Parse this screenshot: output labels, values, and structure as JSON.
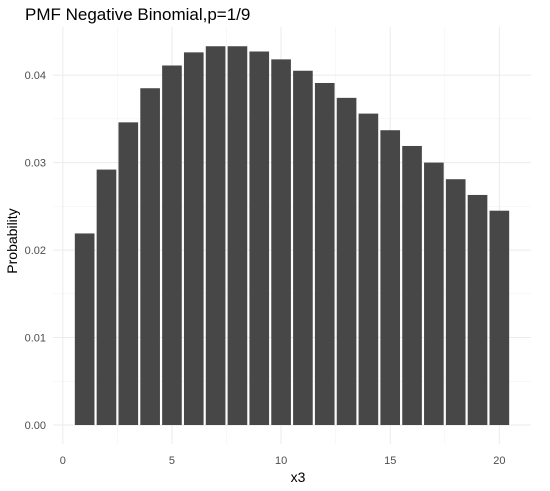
{
  "chart_data": {
    "type": "bar",
    "title": "PMF Negative Binomial,p=1/9",
    "xlabel": "x3",
    "ylabel": "Probability",
    "x": [
      1,
      2,
      3,
      4,
      5,
      6,
      7,
      8,
      9,
      10,
      11,
      12,
      13,
      14,
      15,
      16,
      17,
      18,
      19,
      20
    ],
    "values": [
      0.0219,
      0.0292,
      0.0346,
      0.0385,
      0.0411,
      0.0426,
      0.0433,
      0.0433,
      0.0427,
      0.0418,
      0.0405,
      0.0391,
      0.0374,
      0.0356,
      0.0337,
      0.0319,
      0.03,
      0.0281,
      0.0263,
      0.0245
    ],
    "xlim": [
      -0.45,
      21.45
    ],
    "ylim": [
      -0.00217,
      0.0455
    ],
    "x_ticks": [
      0,
      5,
      10,
      15,
      20
    ],
    "x_tick_labels": [
      "0",
      "5",
      "10",
      "15",
      "20"
    ],
    "y_ticks": [
      0.0,
      0.01,
      0.02,
      0.03,
      0.04
    ],
    "y_tick_labels": [
      "0.00",
      "0.01",
      "0.02",
      "0.03",
      "0.04"
    ],
    "grid": true,
    "bar_color": "#474747",
    "background": "#ffffff"
  }
}
